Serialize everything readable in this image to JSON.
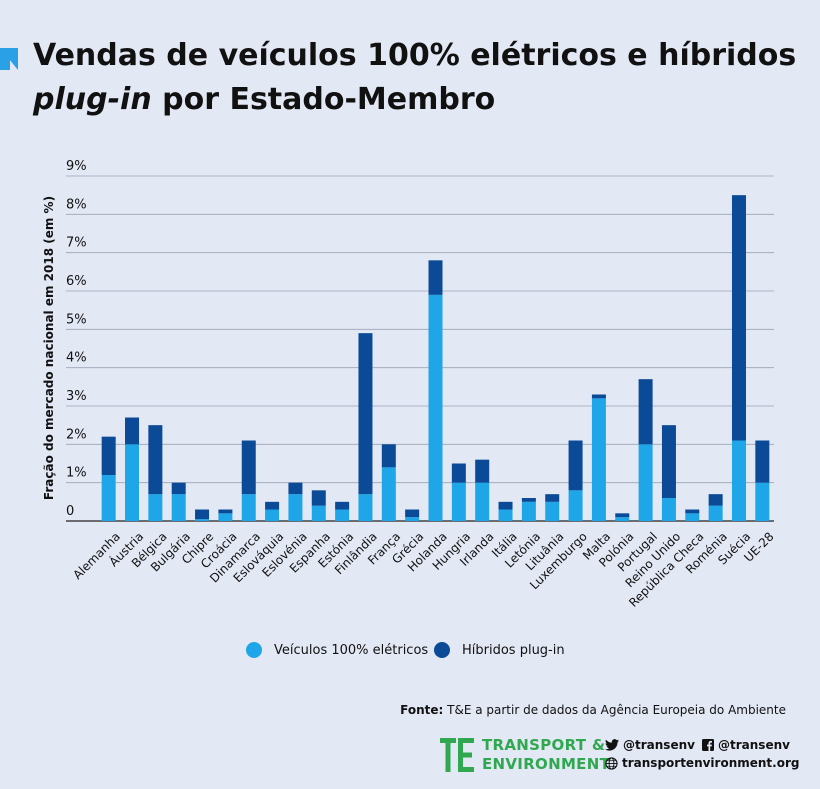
{
  "title": {
    "line1": "Vendas de veículos 100% elétricos e híbridos",
    "line2_italic": "plug-in",
    "line2_rest": " por Estado-Membro"
  },
  "colors": {
    "background": "#e3e8f5",
    "bev": "#1ea6e8",
    "phev": "#0b4a96",
    "accent": "#2aa0e6",
    "brand_green": "#2fa84f"
  },
  "chart_data": {
    "type": "bar",
    "stacked": true,
    "title": "Vendas de veículos 100% elétricos e híbridos plug-in por Estado-Membro",
    "ylabel": "Fração do mercado nacional em 2018 (em %)",
    "xlabel": "",
    "ylim": [
      0,
      9
    ],
    "yticks": [
      "0",
      "1%",
      "2%",
      "3%",
      "4%",
      "5%",
      "6%",
      "7%",
      "8%",
      "9%"
    ],
    "grid": true,
    "legend_position": "bottom",
    "categories": [
      "Alemanha",
      "Áustria",
      "Bélgica",
      "Bulgária",
      "Chipre",
      "Croácia",
      "Dinamarca",
      "Eslováquia",
      "Eslovénia",
      "Espanha",
      "Estónia",
      "Finlândia",
      "França",
      "Grécia",
      "Holanda",
      "Hungria",
      "Irlanda",
      "Itália",
      "Letónia",
      "Lituânia",
      "Luxemburgo",
      "Malta",
      "Polónia",
      "Portugal",
      "Reino Unido",
      "República Checa",
      "Roménia",
      "Suécia",
      "UE-28"
    ],
    "series": [
      {
        "name": "Veículos 100% elétricos",
        "values": [
          1.2,
          2.0,
          0.7,
          0.7,
          0.05,
          0.2,
          0.7,
          0.3,
          0.7,
          0.4,
          0.3,
          0.7,
          1.4,
          0.1,
          5.9,
          1.0,
          1.0,
          0.3,
          0.5,
          0.5,
          0.8,
          3.2,
          0.1,
          2.0,
          0.6,
          0.2,
          0.4,
          2.1,
          1.0
        ]
      },
      {
        "name": "Híbridos plug-in",
        "values": [
          1.0,
          0.7,
          1.8,
          0.3,
          0.25,
          0.1,
          1.4,
          0.2,
          0.3,
          0.4,
          0.2,
          4.2,
          0.6,
          0.2,
          0.9,
          0.5,
          0.6,
          0.2,
          0.1,
          0.2,
          1.3,
          0.1,
          0.1,
          1.7,
          1.9,
          0.1,
          0.3,
          6.4,
          1.1
        ]
      }
    ]
  },
  "legend": {
    "bev_label": "Veículos 100% elétricos",
    "phev_label": "Híbridos plug-in"
  },
  "source": {
    "prefix": "Fonte:",
    "text": " T&E a partir de dados da Agência Europeia do Ambiente"
  },
  "footer": {
    "brand_line1": "TRANSPORT &",
    "brand_line2": "ENVIRONMENT",
    "twitter": "@transenv",
    "facebook": "@transenv",
    "website": "transportenvironment.org"
  }
}
